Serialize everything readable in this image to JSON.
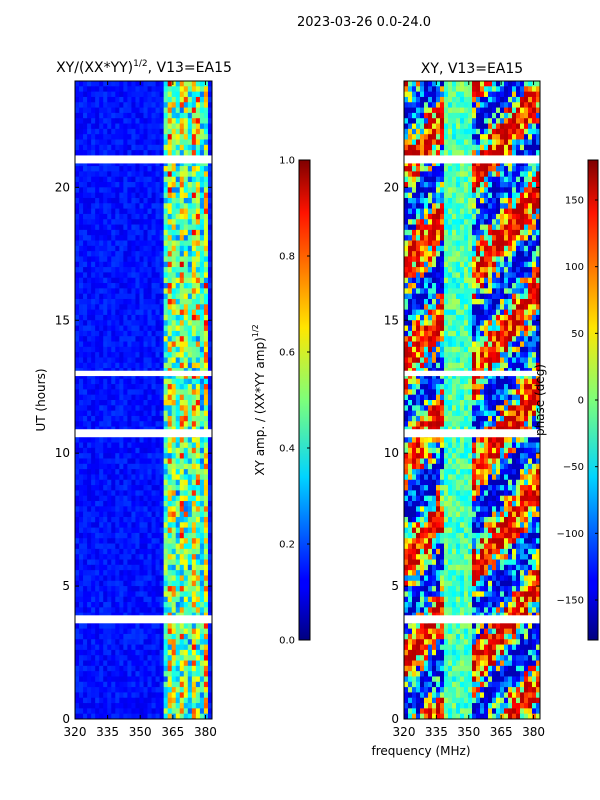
{
  "figure": {
    "suptitle": "2023-03-26 0.0-24.0",
    "shared_xlabel": "frequency (MHz)"
  },
  "chart_data": [
    {
      "type": "heatmap",
      "title": "XY/(XX*YY)",
      "title_exponent": "1/2",
      "title_suffix": ", V13=EA15",
      "xlabel": "frequency (MHz)",
      "ylabel": "UT (hours)",
      "xlim": [
        320,
        383
      ],
      "ylim": [
        0,
        24
      ],
      "xticks": [
        320,
        335,
        350,
        365,
        380
      ],
      "yticks": [
        0,
        5,
        10,
        15,
        20
      ],
      "gaps_hours": [
        [
          3.6,
          3.9
        ],
        [
          10.6,
          10.9
        ],
        [
          12.9,
          13.1
        ],
        [
          20.9,
          21.2
        ]
      ],
      "colorbar": {
        "label": "XY amp. / (XX*YY amp)",
        "label_exponent": "1/2",
        "range": [
          0.0,
          1.0
        ],
        "ticks": [
          "0.0",
          "0.2",
          "0.4",
          "0.6",
          "0.8",
          "1.0"
        ]
      }
    },
    {
      "type": "heatmap",
      "title": "XY, V13=EA15",
      "xlabel": "frequency (MHz)",
      "ylabel": "",
      "xlim": [
        320,
        383
      ],
      "ylim": [
        0,
        24
      ],
      "xticks": [
        320,
        335,
        350,
        365,
        380
      ],
      "yticks": [
        0,
        5,
        10,
        15,
        20
      ],
      "gaps_hours": [
        [
          3.6,
          3.9
        ],
        [
          10.6,
          10.9
        ],
        [
          12.9,
          13.1
        ],
        [
          20.9,
          21.2
        ]
      ],
      "colorbar": {
        "label": "phase (deg)",
        "range": [
          -180,
          180
        ],
        "ticks": [
          "−150",
          "−100",
          "−50",
          "0",
          "50",
          "100",
          "150"
        ],
        "tick_values": [
          -150,
          -100,
          -50,
          0,
          50,
          100,
          150
        ]
      }
    }
  ]
}
